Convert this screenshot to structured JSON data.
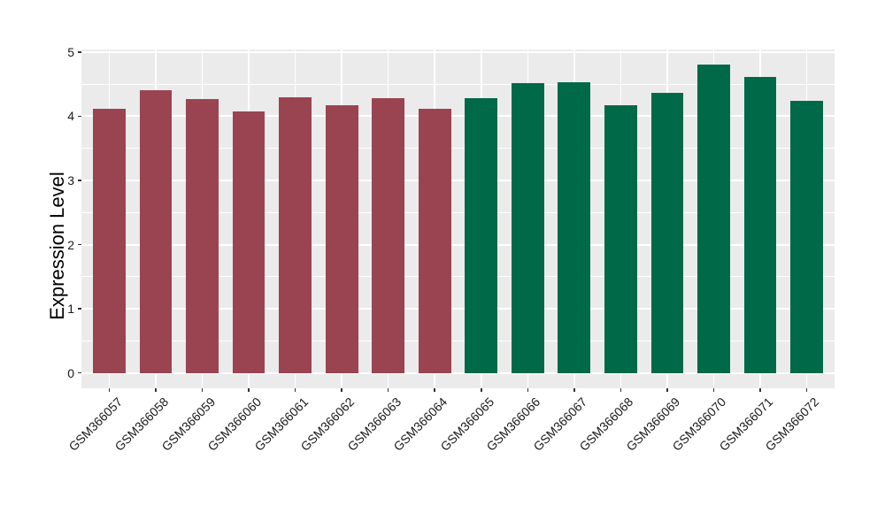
{
  "figure": {
    "background": "#ffffff",
    "panel_background": "#ebebeb",
    "grid_color": "#ffffff",
    "tick_mark_color": "#333333",
    "tick_text_color": "#1a1a1a",
    "axis_title_color": "#000000"
  },
  "chart_data": {
    "type": "bar",
    "title": "",
    "xlabel": "",
    "ylabel": "Expression Level",
    "categories": [
      "GSM366057",
      "GSM366058",
      "GSM366059",
      "GSM366060",
      "GSM366061",
      "GSM366062",
      "GSM366063",
      "GSM366064",
      "GSM366065",
      "GSM366066",
      "GSM366067",
      "GSM366068",
      "GSM366069",
      "GSM366070",
      "GSM366071",
      "GSM366072"
    ],
    "values": [
      4.12,
      4.41,
      4.27,
      4.07,
      4.29,
      4.17,
      4.28,
      4.11,
      4.28,
      4.51,
      4.53,
      4.17,
      4.37,
      4.8,
      4.61,
      4.24
    ],
    "bar_colors": [
      "#9a4451",
      "#9a4451",
      "#9a4451",
      "#9a4451",
      "#9a4451",
      "#9a4451",
      "#9a4451",
      "#9a4451",
      "#006948",
      "#006948",
      "#006948",
      "#006948",
      "#006948",
      "#006948",
      "#006948",
      "#006948"
    ],
    "group_colors": {
      "left_group": "#9a4451",
      "right_group": "#006948"
    },
    "yticks": [
      "0",
      "1",
      "2",
      "3",
      "4",
      "5"
    ],
    "ylim": [
      0,
      5
    ],
    "grid": "major-and-minor, white on gray panel",
    "legend_position": "none",
    "x_label_rotation_deg": 45
  }
}
